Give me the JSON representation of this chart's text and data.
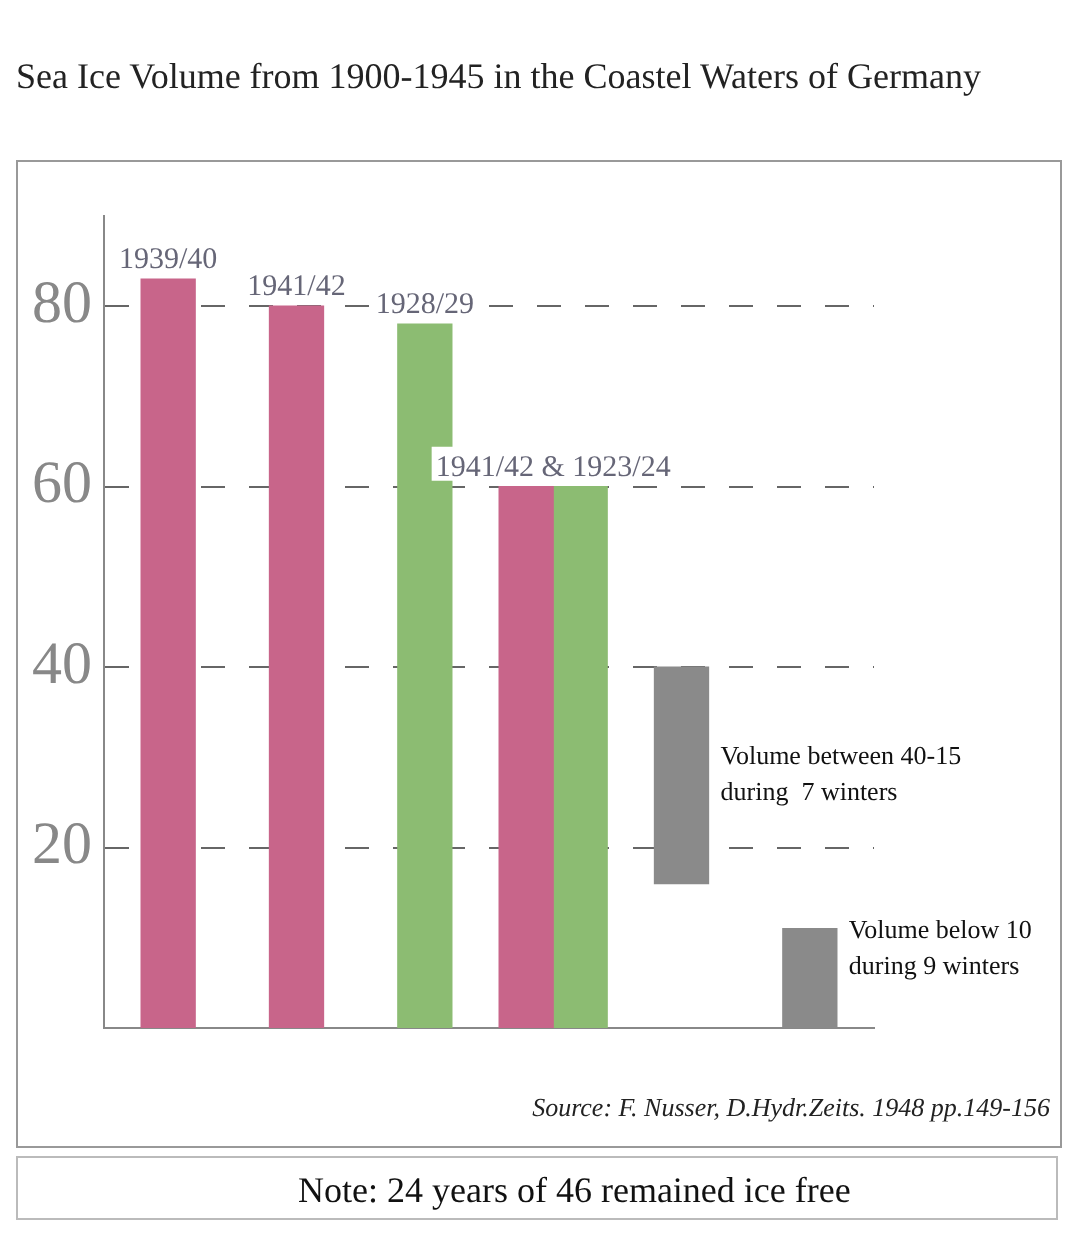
{
  "chart_data": {
    "type": "bar",
    "title": "Sea Ice Volume from 1900-1945 in the Coastel Waters of Germany",
    "categories": [
      "1939/40",
      "1941/42",
      "1928/29",
      "1941/42 & 1923/24",
      null,
      null
    ],
    "series": [
      {
        "color": "#c8658a",
        "values": [
          83,
          80,
          null,
          60,
          null,
          null
        ]
      },
      {
        "color": "#8cbc72",
        "values": [
          null,
          null,
          78,
          60,
          null,
          null
        ]
      },
      {
        "color": "#8a8a8a",
        "values": [
          null,
          null,
          null,
          null,
          24,
          11
        ],
        "base": [
          null,
          null,
          null,
          null,
          16,
          0
        ]
      }
    ],
    "ylim": [
      0,
      90
    ],
    "yticks": [
      20,
      40,
      60,
      80
    ],
    "grid": "y",
    "tick_labels": "y",
    "legend": false,
    "annotations": [
      "Volume between 40-15\nduring  7 winters",
      "Volume below 10\nduring 9 winters",
      "Source: F. Nusser, D.Hydr.Zeits. 1948 pp.149-156",
      "Note: 24 years of 46 remained ice free"
    ]
  }
}
